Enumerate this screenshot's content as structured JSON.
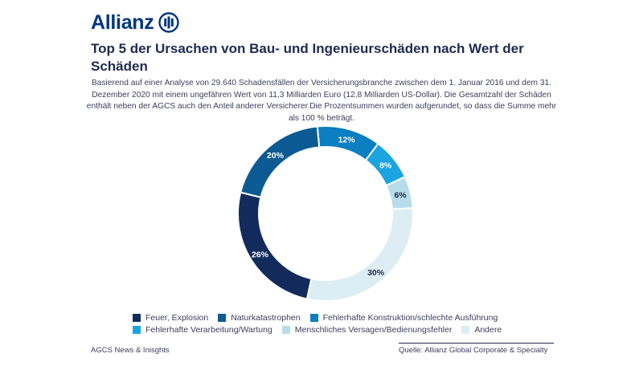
{
  "brand": {
    "name": "Allianz"
  },
  "title": "Top 5 der Ursachen von Bau- und Ingenieurschäden nach Wert der Schäden",
  "subtitle": "Basierend auf einer Analyse von 29.640 Schadensfällen der Versicherungsbranche zwischen dem 1. Januar 2016 und dem 31. Dezember 2020 mit einem ungefähren Wert von 11,3 Milliarden Euro (12,8 Milliarden US-Dollar). Die Gesamtzahl der Schäden enthält neben der AGCS auch den Anteil anderer Versicherer.Die Prozentsummen wurden aufgerundet, so dass die Summe mehr als 100 % beträgt.",
  "chart_data": {
    "type": "pie",
    "donut": true,
    "categories": [
      "Feuer, Explosion",
      "Naturkatastrophen",
      "Fehlerhafte Konstruktion/schlechte Ausführung",
      "Fehlerhafte Verarbeitung/Wartung",
      "Menschliches Versagen/Bedienungsfehler",
      "Andere"
    ],
    "values": [
      26,
      20,
      12,
      8,
      6,
      30
    ],
    "labels": [
      "26%",
      "20%",
      "12%",
      "8%",
      "6%",
      "30%"
    ],
    "colors": [
      "#122b5c",
      "#0c5a94",
      "#0b7fc1",
      "#1ba5e0",
      "#b9dcea",
      "#dcedf3"
    ],
    "label_colors": [
      "#ffffff",
      "#ffffff",
      "#ffffff",
      "#ffffff",
      "#1f2a4f",
      "#1f2a4f"
    ],
    "legend_position": "bottom"
  },
  "footer": {
    "left": "AGCS News & Inisghts",
    "right": "Quelle: Allianz Global Corporate & Specialty"
  }
}
